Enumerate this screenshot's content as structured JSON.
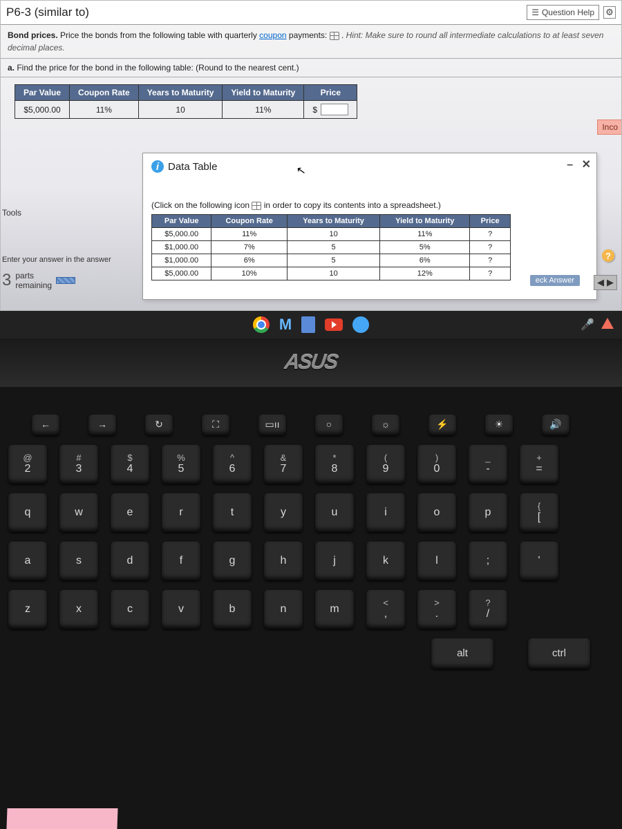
{
  "header": {
    "title": "P6-3 (similar to)",
    "help_label": "Question Help"
  },
  "prompt": {
    "lead": "Bond prices. ",
    "text_a": "Price the bonds from the following table with quarterly ",
    "coupon_link": "coupon",
    "text_b": " payments: ",
    "hint_lead": "Hint: ",
    "hint": "Make sure to round all intermediate calculations to at least seven decimal places."
  },
  "sub_a": {
    "label": "a. ",
    "text": "Find the price for the bond in the following table:  (Round to the nearest cent.)"
  },
  "tbl1": {
    "h_par": "Par Value",
    "h_coupon": "Coupon Rate",
    "h_years": "Years to Maturity",
    "h_yield": "Yield to Maturity",
    "h_price": "Price",
    "par": "$5,000.00",
    "coupon": "11%",
    "years": "10",
    "yield": "11%",
    "price_prefix": "$"
  },
  "popup": {
    "title": "Data Table",
    "click_text_a": "(Click on the following icon ",
    "click_text_b": " in order to copy its contents into a spreadsheet.)",
    "h_par": "Par Value",
    "h_coupon": "Coupon Rate",
    "h_years": "Years to Maturity",
    "h_yield": "Yield to Maturity",
    "h_price": "Price",
    "r1": {
      "par": "$5,000.00",
      "coupon": "11%",
      "years": "10",
      "yield": "11%",
      "price": "?"
    },
    "r2": {
      "par": "$1,000.00",
      "coupon": "7%",
      "years": "5",
      "yield": "5%",
      "price": "?"
    },
    "r3": {
      "par": "$1,000.00",
      "coupon": "6%",
      "years": "5",
      "yield": "6%",
      "price": "?"
    },
    "r4": {
      "par": "$5,000.00",
      "coupon": "10%",
      "years": "10",
      "yield": "12%",
      "price": "?"
    }
  },
  "side": {
    "tools_label": "Tools",
    "enter_label": "Enter your answer in the answer",
    "parts_num": "3",
    "parts_a": "parts",
    "parts_b": "remaining"
  },
  "badges": {
    "incorrect": "Inco",
    "check_answer": "eck Answer",
    "arrow_l": "◀",
    "arrow_r": "▶"
  },
  "brand": "ASUS",
  "kbd": {
    "fn": {
      "back": "←",
      "fwd": "→",
      "ref": "↻",
      "full": "⛶",
      "proj": "▭ıı",
      "circ": "○",
      "star": "☼",
      "bolt": "⚡",
      "sun": "☀",
      "vol": "🔊"
    },
    "r2": {
      "at": "@",
      "two": "2",
      "hash": "#",
      "three": "3",
      "dol": "$",
      "four": "4",
      "pct": "%",
      "five": "5",
      "car": "^",
      "six": "6",
      "amp": "&",
      "seven": "7",
      "ast": "*",
      "eight": "8",
      "lp": "(",
      "nine": "9",
      "rp": ")",
      "zero": "0",
      "und": "_",
      "dash": "-",
      "plus": "+",
      "eq": "="
    },
    "r3": {
      "q": "q",
      "w": "w",
      "e": "e",
      "r": "r",
      "t": "t",
      "y": "y",
      "u": "u",
      "i": "i",
      "o": "o",
      "p": "p",
      "lb": "{",
      "lb2": "["
    },
    "r4": {
      "a": "a",
      "s": "s",
      "d": "d",
      "f": "f",
      "g": "g",
      "h": "h",
      "j": "j",
      "k": "k",
      "l": "l",
      "semi": ";",
      "quote": "'"
    },
    "r5": {
      "z": "z",
      "x": "x",
      "c": "c",
      "v": "v",
      "b": "b",
      "n": "n",
      "m": "m",
      "lt": "<",
      "com": ",",
      "gt": ">",
      "dot": ".",
      "qm": "?",
      "sl": "/"
    },
    "r6": {
      "alt": "alt",
      "ctrl": "ctrl"
    }
  }
}
